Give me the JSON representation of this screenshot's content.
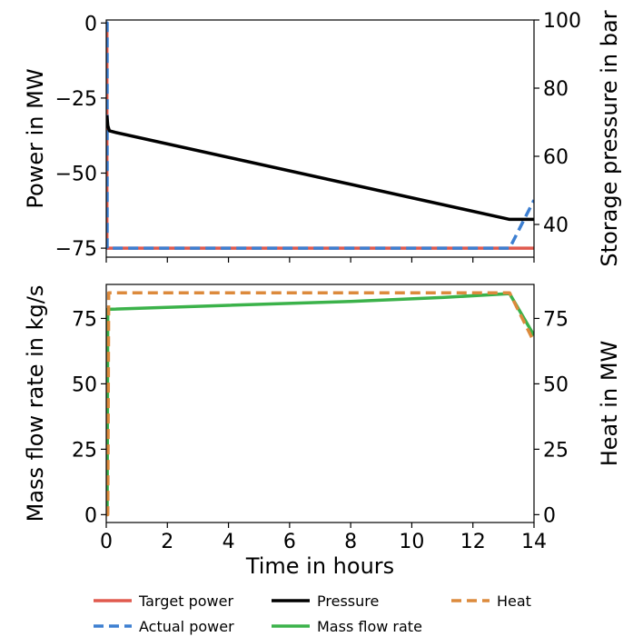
{
  "chart_data": [
    {
      "type": "line",
      "panel": "top",
      "ylabel": "Power in MW",
      "y2label": "Storage pressure in bar",
      "xlim": [
        0,
        14
      ],
      "ylim": [
        -78,
        1
      ],
      "y2lim": [
        30.4,
        100
      ],
      "yticks": [
        0,
        -25,
        -50,
        -75
      ],
      "ytick_labels": [
        "0",
        "−25",
        "−50",
        "−75"
      ],
      "y2ticks": [
        40,
        60,
        80,
        100
      ],
      "y2tick_labels": [
        "40",
        "60",
        "80",
        "100"
      ],
      "series": [
        {
          "name": "Target power",
          "axis": "left",
          "color": "#e05a4e",
          "dash": false,
          "x": [
            0,
            0.02,
            0.02,
            14
          ],
          "y": [
            0,
            0,
            -75,
            -75
          ]
        },
        {
          "name": "Actual power",
          "axis": "left",
          "color": "#3d7fd1",
          "dash": true,
          "x": [
            0,
            0.03,
            0.03,
            13.2,
            14
          ],
          "y": [
            0,
            0,
            -75,
            -75,
            -59
          ]
        },
        {
          "name": "Pressure",
          "axis": "right",
          "color": "#000000",
          "dash": false,
          "x": [
            0.02,
            0.05,
            0.1,
            0.3,
            13.2,
            14
          ],
          "y": [
            72,
            69,
            67.5,
            67,
            41.5,
            41.5
          ]
        }
      ]
    },
    {
      "type": "line",
      "panel": "bottom",
      "xlabel": "Time in hours",
      "ylabel": "Mass flow rate in kg/s",
      "y2label": "Heat in MW",
      "xlim": [
        0,
        14
      ],
      "ylim": [
        -3,
        88
      ],
      "y2lim": [
        -3,
        88
      ],
      "yticks": [
        0,
        25,
        50,
        75
      ],
      "ytick_labels": [
        "0",
        "25",
        "50",
        "75"
      ],
      "y2ticks": [
        0,
        25,
        50,
        75
      ],
      "y2tick_labels": [
        "0",
        "25",
        "50",
        "75"
      ],
      "xticks": [
        0,
        2,
        4,
        6,
        8,
        10,
        12,
        14
      ],
      "xtick_labels": [
        "0",
        "2",
        "4",
        "6",
        "8",
        "10",
        "12",
        "14"
      ],
      "series": [
        {
          "name": "Mass flow rate",
          "axis": "left",
          "color": "#3bb24a",
          "dash": false,
          "x": [
            0,
            0.03,
            0.05,
            4,
            8,
            11,
            13.2,
            14
          ],
          "y": [
            0,
            0,
            78.5,
            80,
            81.5,
            83,
            84.5,
            68.5
          ]
        },
        {
          "name": "Heat",
          "axis": "right",
          "color": "#dc8a3c",
          "dash": true,
          "x": [
            0,
            0.05,
            0.08,
            13.2,
            14
          ],
          "y": [
            0,
            0,
            84.8,
            84.8,
            66
          ]
        }
      ]
    }
  ],
  "legend": {
    "placement": "bottom",
    "items": [
      {
        "label": "Target power",
        "color": "#e05a4e",
        "dash": false
      },
      {
        "label": "Pressure",
        "color": "#000000",
        "dash": false
      },
      {
        "label": "Heat",
        "color": "#dc8a3c",
        "dash": true
      },
      {
        "label": "Actual power",
        "color": "#3d7fd1",
        "dash": true
      },
      {
        "label": "Mass flow rate",
        "color": "#3bb24a",
        "dash": false
      }
    ]
  }
}
